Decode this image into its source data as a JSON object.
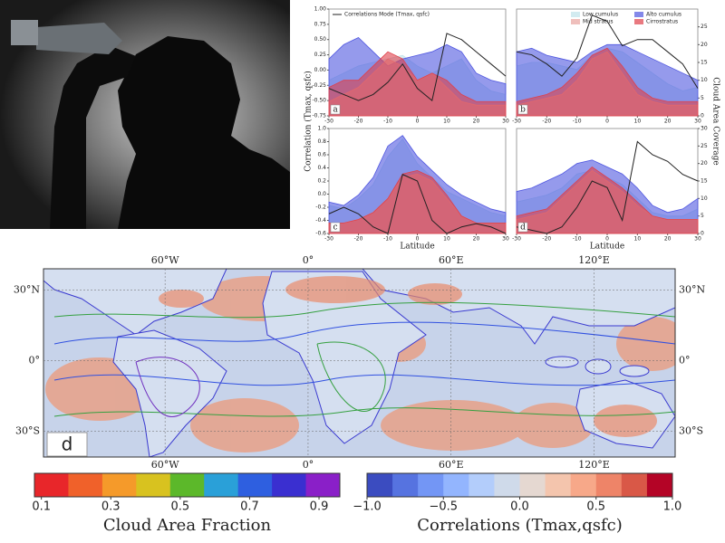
{
  "chart_data": [
    {
      "type": "line",
      "label": "a",
      "ylabel": "Correlation (Tmax, qsfc)",
      "x": [
        -30,
        -25,
        -20,
        -15,
        -10,
        -5,
        0,
        5,
        10,
        15,
        20,
        25,
        30
      ],
      "xlim": [
        -30,
        30
      ],
      "xticks": [
        -30,
        -20,
        -10,
        0,
        10,
        20,
        30
      ],
      "ylim": [
        -0.75,
        1.0
      ],
      "yticks": [
        {
          "value": 1.0,
          "label": "1.00"
        },
        {
          "value": 0.75,
          "label": "0.75"
        },
        {
          "value": 0.5,
          "label": "0.50"
        },
        {
          "value": 0.25,
          "label": "0.25"
        },
        {
          "value": 0.0,
          "label": "0.00"
        },
        {
          "value": -0.25,
          "label": "-0.25"
        },
        {
          "value": -0.5,
          "label": "-0.50"
        },
        {
          "value": -0.75,
          "label": "-0.75"
        }
      ],
      "y2lim": [
        0,
        30
      ],
      "series": [
        {
          "color": "#bfe3ea",
          "axis": "y2",
          "values": [
            10,
            12,
            14,
            15,
            16,
            17,
            14,
            12,
            14,
            16,
            10,
            7,
            6
          ]
        },
        {
          "color": "#4f56e0",
          "axis": "y2",
          "values": [
            16,
            20,
            22,
            18,
            14,
            16,
            17,
            18,
            20,
            18,
            12,
            10,
            9
          ]
        },
        {
          "color": "#e8a4a0",
          "axis": "y2",
          "values": [
            4,
            6,
            8,
            12,
            16,
            14,
            10,
            12,
            8,
            4,
            3,
            3,
            3
          ]
        },
        {
          "color": "#e0404a",
          "axis": "y2",
          "values": [
            8,
            10,
            10,
            14,
            18,
            16,
            10,
            12,
            10,
            6,
            4,
            4,
            4
          ]
        },
        {
          "name": "Correlations Mode (Tmax, qsfc)",
          "color": "#222222",
          "values": [
            -0.3,
            -0.4,
            -0.5,
            -0.4,
            -0.2,
            0.1,
            -0.3,
            -0.5,
            0.6,
            0.5,
            0.3,
            0.1,
            -0.1
          ]
        }
      ]
    },
    {
      "type": "line",
      "label": "b",
      "y2label": "Cloud Area Coverage",
      "x": [
        -30,
        -25,
        -20,
        -15,
        -10,
        -5,
        0,
        5,
        10,
        15,
        20,
        25,
        30
      ],
      "xlim": [
        -30,
        30
      ],
      "xticks": [
        -30,
        -20,
        -10,
        0,
        10,
        20,
        30
      ],
      "ylim": [
        -0.75,
        1.0
      ],
      "y2lim": [
        0,
        30
      ],
      "y2ticks": [
        0,
        5,
        10,
        15,
        20,
        25
      ],
      "series": [
        {
          "name": "Low cumulus",
          "color": "#bfe3ea",
          "axis": "y2",
          "values": [
            14,
            15,
            15,
            14,
            13,
            17,
            19,
            18,
            15,
            12,
            9,
            7,
            8
          ]
        },
        {
          "name": "Alto cumulus",
          "color": "#4f56e0",
          "axis": "y2",
          "values": [
            18,
            19,
            17,
            16,
            15,
            18,
            20,
            20,
            18,
            16,
            14,
            12,
            10
          ]
        },
        {
          "name": "Mid stratus",
          "color": "#e8a4a0",
          "axis": "y2",
          "values": [
            3,
            4,
            5,
            6,
            10,
            16,
            18,
            12,
            6,
            4,
            3,
            3,
            3
          ]
        },
        {
          "name": "Cirrostratus",
          "color": "#e0404a",
          "axis": "y2",
          "values": [
            4,
            5,
            6,
            8,
            12,
            17,
            19,
            14,
            8,
            5,
            4,
            4,
            4
          ]
        },
        {
          "color": "#222222",
          "values": [
            0.3,
            0.25,
            0.1,
            -0.1,
            0.2,
            0.9,
            0.8,
            0.4,
            0.5,
            0.5,
            0.3,
            0.1,
            -0.3
          ]
        }
      ]
    },
    {
      "type": "line",
      "label": "c",
      "xlabel": "Latitude",
      "x": [
        -30,
        -25,
        -20,
        -15,
        -10,
        -5,
        0,
        5,
        10,
        15,
        20,
        25,
        30
      ],
      "xlim": [
        -30,
        30
      ],
      "xticks": [
        -30,
        -20,
        -10,
        0,
        10,
        20,
        30
      ],
      "ylim": [
        -0.6,
        1.0
      ],
      "yticks": [
        {
          "value": 1.0,
          "label": "1.0"
        },
        {
          "value": 0.8,
          "label": "0.8"
        },
        {
          "value": 0.6,
          "label": "0.6"
        },
        {
          "value": 0.4,
          "label": "0.4"
        },
        {
          "value": 0.2,
          "label": "0.2"
        },
        {
          "value": 0.0,
          "label": "0.0"
        },
        {
          "value": -0.2,
          "label": "-0.2"
        },
        {
          "value": -0.4,
          "label": "-0.4"
        },
        {
          "value": -0.6,
          "label": "-0.6"
        }
      ],
      "y2lim": [
        0,
        30
      ],
      "series": [
        {
          "color": "#bfe3ea",
          "axis": "y2",
          "values": [
            8,
            7,
            10,
            14,
            22,
            27,
            20,
            16,
            12,
            10,
            8,
            6,
            5
          ]
        },
        {
          "color": "#4f56e0",
          "axis": "y2",
          "values": [
            9,
            8,
            11,
            16,
            25,
            28,
            22,
            18,
            14,
            11,
            9,
            7,
            6
          ]
        },
        {
          "color": "#e8a4a0",
          "axis": "y2",
          "values": [
            3,
            3,
            4,
            6,
            10,
            16,
            17,
            15,
            10,
            5,
            3,
            3,
            3
          ]
        },
        {
          "color": "#e0404a",
          "axis": "y2",
          "values": [
            3,
            3,
            4,
            6,
            10,
            17,
            18,
            16,
            11,
            5,
            3,
            3,
            3
          ]
        },
        {
          "color": "#222222",
          "values": [
            -0.3,
            -0.2,
            -0.3,
            -0.5,
            -0.6,
            0.3,
            0.2,
            -0.4,
            -0.6,
            -0.5,
            -0.45,
            -0.5,
            -0.6
          ]
        }
      ]
    },
    {
      "type": "line",
      "label": "d",
      "xlabel": "Latitude",
      "x": [
        -30,
        -25,
        -20,
        -15,
        -10,
        -5,
        0,
        5,
        10,
        15,
        20,
        25,
        30
      ],
      "xlim": [
        -30,
        30
      ],
      "xticks": [
        -30,
        -20,
        -10,
        0,
        10,
        20,
        30
      ],
      "ylim": [
        -0.6,
        1.0
      ],
      "y2lim": [
        0,
        30
      ],
      "y2ticks": [
        0,
        5,
        10,
        15,
        20,
        25,
        30
      ],
      "series": [
        {
          "color": "#bfe3ea",
          "axis": "y2",
          "values": [
            9,
            10,
            11,
            13,
            17,
            18,
            16,
            14,
            10,
            6,
            5,
            5,
            7
          ]
        },
        {
          "color": "#4f56e0",
          "axis": "y2",
          "values": [
            12,
            13,
            15,
            17,
            20,
            21,
            19,
            17,
            13,
            8,
            6,
            7,
            10
          ]
        },
        {
          "color": "#e8a4a0",
          "axis": "y2",
          "values": [
            4,
            5,
            6,
            10,
            14,
            18,
            15,
            12,
            8,
            5,
            4,
            4,
            4
          ]
        },
        {
          "color": "#e0404a",
          "axis": "y2",
          "values": [
            5,
            6,
            7,
            11,
            15,
            19,
            16,
            13,
            9,
            5,
            4,
            4,
            4
          ]
        },
        {
          "color": "#222222",
          "values": [
            -0.5,
            -0.55,
            -0.6,
            -0.5,
            -0.2,
            0.2,
            0.1,
            -0.4,
            0.8,
            0.6,
            0.5,
            0.3,
            0.2
          ]
        }
      ]
    },
    {
      "type": "map",
      "label": "d",
      "xlim": [
        -111,
        154
      ],
      "xticks": [
        {
          "value": -60,
          "label": "60°W"
        },
        {
          "value": 0,
          "label": "0°"
        },
        {
          "value": 60,
          "label": "60°E"
        },
        {
          "value": 120,
          "label": "120°E"
        }
      ],
      "ylim": [
        -41,
        39
      ],
      "yticks": [
        {
          "value": 30,
          "label": "30°N"
        },
        {
          "value": 0,
          "label": "0°"
        },
        {
          "value": -30,
          "label": "30°S"
        }
      ]
    },
    {
      "type": "colorbar",
      "xlabel": "Cloud Area Fraction",
      "xlim": [
        0.08,
        0.96
      ],
      "xticks": [
        0.1,
        0.3,
        0.5,
        0.7,
        0.9
      ],
      "colors": [
        "#e8262a",
        "#f0612a",
        "#f59a2a",
        "#d8c21f",
        "#5cb82a",
        "#2aa0d8",
        "#2e5fe0",
        "#3a2fd0",
        "#8a1fc8"
      ]
    },
    {
      "type": "colorbar",
      "xlabel": "Correlations (Tmax,qsfc)",
      "xlim": [
        -1.0,
        1.0
      ],
      "xticks": [
        {
          "value": -1.0,
          "label": "−1.0"
        },
        {
          "value": -0.5,
          "label": "−0.5"
        },
        {
          "value": 0.0,
          "label": "0.0"
        },
        0.5,
        {
          "value": 1.0,
          "label": "1.0"
        }
      ],
      "colors": [
        "#3b4cc0",
        "#5673e0",
        "#7396f5",
        "#93b5fe",
        "#b3cdfb",
        "#cfdaea",
        "#e5d8d1",
        "#f4c5ad",
        "#f7a889",
        "#ee8468",
        "#d95847",
        "#b40426"
      ]
    }
  ]
}
